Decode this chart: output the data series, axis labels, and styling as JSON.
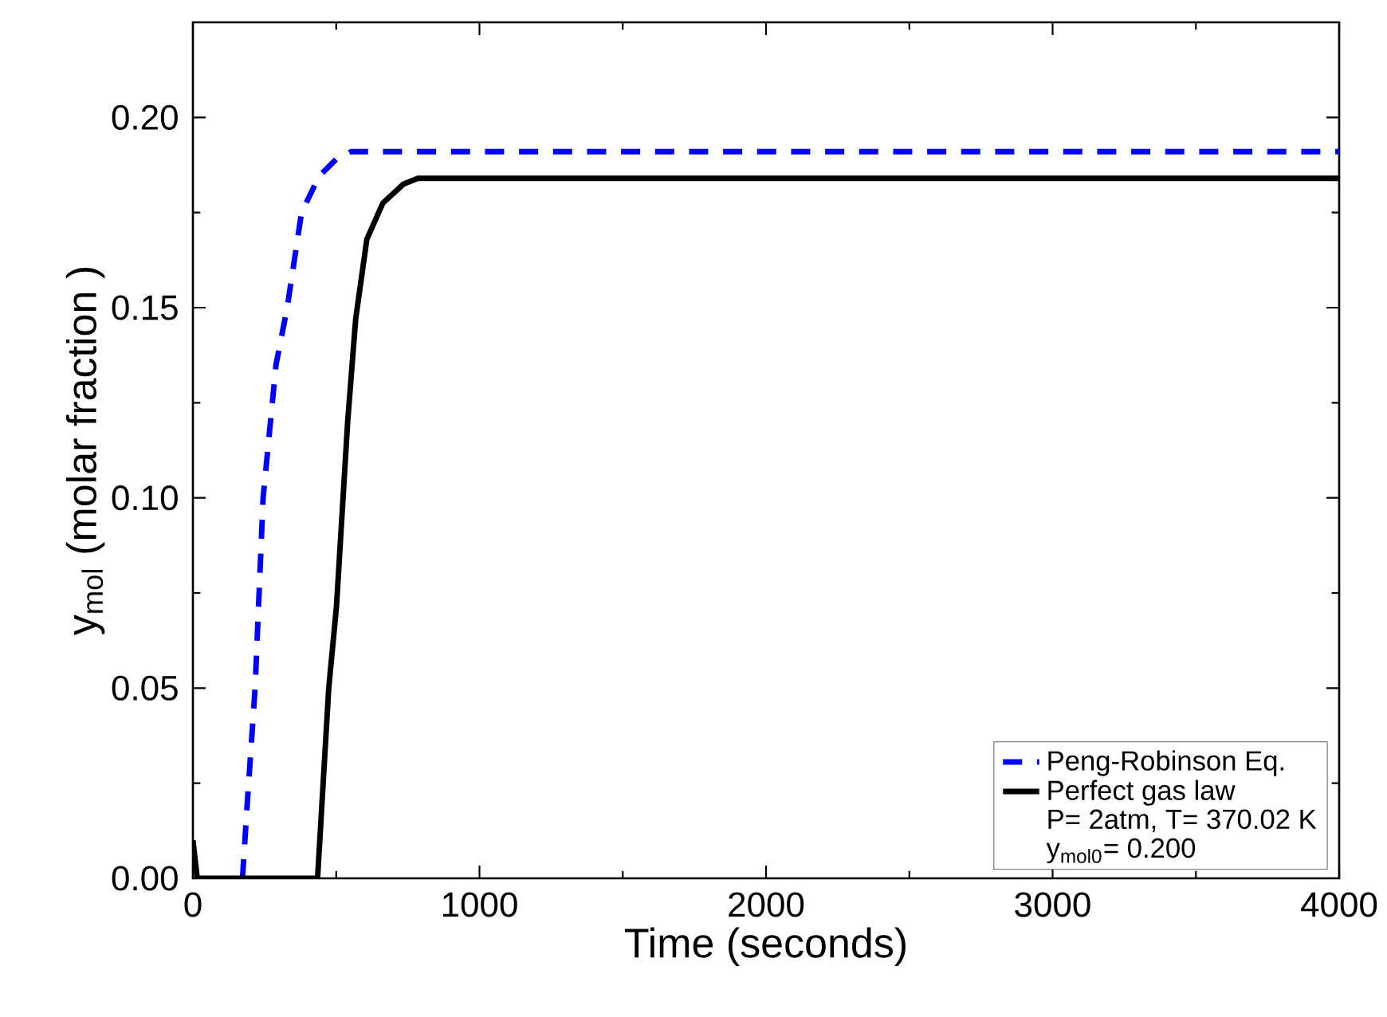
{
  "chart_data": {
    "type": "line",
    "xlabel": "Time (seconds)",
    "ylabel": "y$_{mol}$ (molar fraction )",
    "xlim": [
      0,
      4000
    ],
    "xticks": [
      0,
      1000,
      2000,
      3000,
      4000
    ],
    "ylim": [
      0,
      0.225
    ],
    "yticks": [
      {
        "value": 0,
        "label": "0.00"
      },
      {
        "value": 0.05,
        "label": "0.05"
      },
      {
        "value": 0.1,
        "label": "0.10"
      },
      {
        "value": 0.15,
        "label": "0.15"
      },
      {
        "value": 0.2,
        "label": "0.20"
      }
    ],
    "grid": false,
    "legend": "bottom right",
    "marker": "none",
    "series": [
      {
        "name": "Peng-Robinson Eq.",
        "color": "#0000ff",
        "line_style": "dashed",
        "x": [
          173,
          190,
          217,
          245,
          290,
          329,
          379,
          440,
          500,
          552,
          1000,
          2000,
          3000,
          4000
        ],
        "values": [
          0,
          0.02,
          0.05,
          0.1,
          0.135,
          0.15,
          0.175,
          0.1845,
          0.189,
          0.191,
          0.191,
          0.191,
          0.191,
          0.191
        ]
      },
      {
        "name": "Perfect gas law",
        "color": "#000000",
        "line_style": "solid",
        "x": [
          0,
          15,
          200,
          435,
          474,
          501,
          540,
          568,
          607,
          663,
          735,
          785,
          1000,
          2000,
          3000,
          4000
        ],
        "values": [
          0.01,
          0,
          0,
          0,
          0.05,
          0.0715,
          0.12,
          0.147,
          0.168,
          0.1775,
          0.1825,
          0.184,
          0.184,
          0.184,
          0.184,
          0.184
        ]
      }
    ],
    "annotations": [
      "P= 2atm, T= 370.02 K",
      "y$_{mol0}$= 0.200"
    ]
  }
}
